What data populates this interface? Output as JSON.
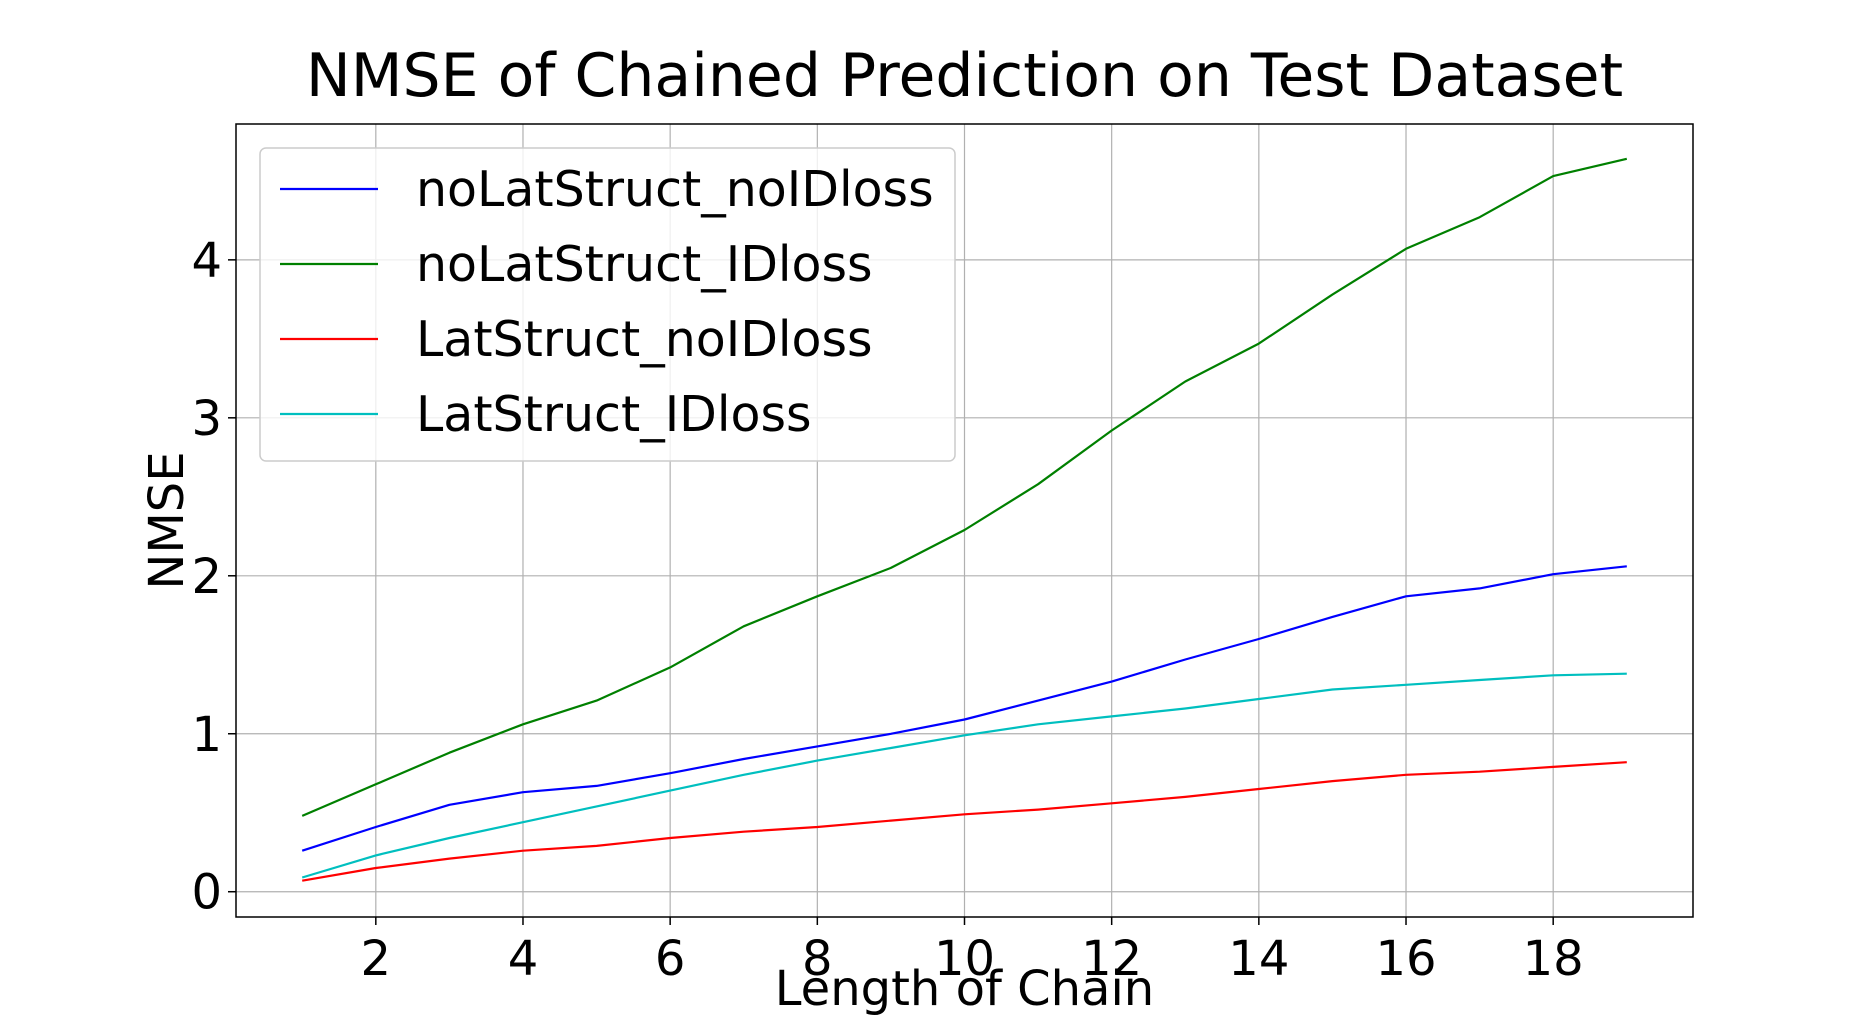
{
  "chart_data": {
    "type": "line",
    "title": "NMSE of Chained Prediction on Test Dataset",
    "xlabel": "Length of Chain",
    "ylabel": "NMSE",
    "x": [
      1,
      2,
      3,
      4,
      5,
      6,
      7,
      8,
      9,
      10,
      11,
      12,
      13,
      14,
      15,
      16,
      17,
      18,
      19
    ],
    "xlim": [
      0.1,
      19.9
    ],
    "ylim": [
      -0.16,
      4.86
    ],
    "xticks": [
      2,
      4,
      6,
      8,
      10,
      12,
      14,
      16,
      18
    ],
    "yticks": [
      0,
      1,
      2,
      3,
      4
    ],
    "xtick_labels": [
      "2",
      "4",
      "6",
      "8",
      "10",
      "12",
      "14",
      "16",
      "18"
    ],
    "ytick_labels": [
      "0",
      "1",
      "2",
      "3",
      "4"
    ],
    "grid": true,
    "legend_position": "top-left",
    "series": [
      {
        "name": "noLatStruct_noIDloss",
        "color": "#0000ff",
        "values": [
          0.26,
          0.41,
          0.55,
          0.63,
          0.67,
          0.75,
          0.84,
          0.92,
          1.0,
          1.09,
          1.21,
          1.33,
          1.47,
          1.6,
          1.74,
          1.87,
          1.92,
          2.01,
          2.06
        ]
      },
      {
        "name": "noLatStruct_IDloss",
        "color": "#008000",
        "values": [
          0.48,
          0.68,
          0.88,
          1.06,
          1.21,
          1.42,
          1.68,
          1.87,
          2.05,
          2.29,
          2.58,
          2.92,
          3.23,
          3.47,
          3.78,
          4.07,
          4.27,
          4.53,
          4.64
        ]
      },
      {
        "name": "LatStruct_noIDloss",
        "color": "#ff0000",
        "values": [
          0.07,
          0.15,
          0.21,
          0.26,
          0.29,
          0.34,
          0.38,
          0.41,
          0.45,
          0.49,
          0.52,
          0.56,
          0.6,
          0.65,
          0.7,
          0.74,
          0.76,
          0.79,
          0.82
        ]
      },
      {
        "name": "LatStruct_IDloss",
        "color": "#00bfbf",
        "values": [
          0.09,
          0.23,
          0.34,
          0.44,
          0.54,
          0.64,
          0.74,
          0.83,
          0.91,
          0.99,
          1.06,
          1.11,
          1.16,
          1.22,
          1.28,
          1.31,
          1.34,
          1.37,
          1.38
        ]
      }
    ]
  }
}
